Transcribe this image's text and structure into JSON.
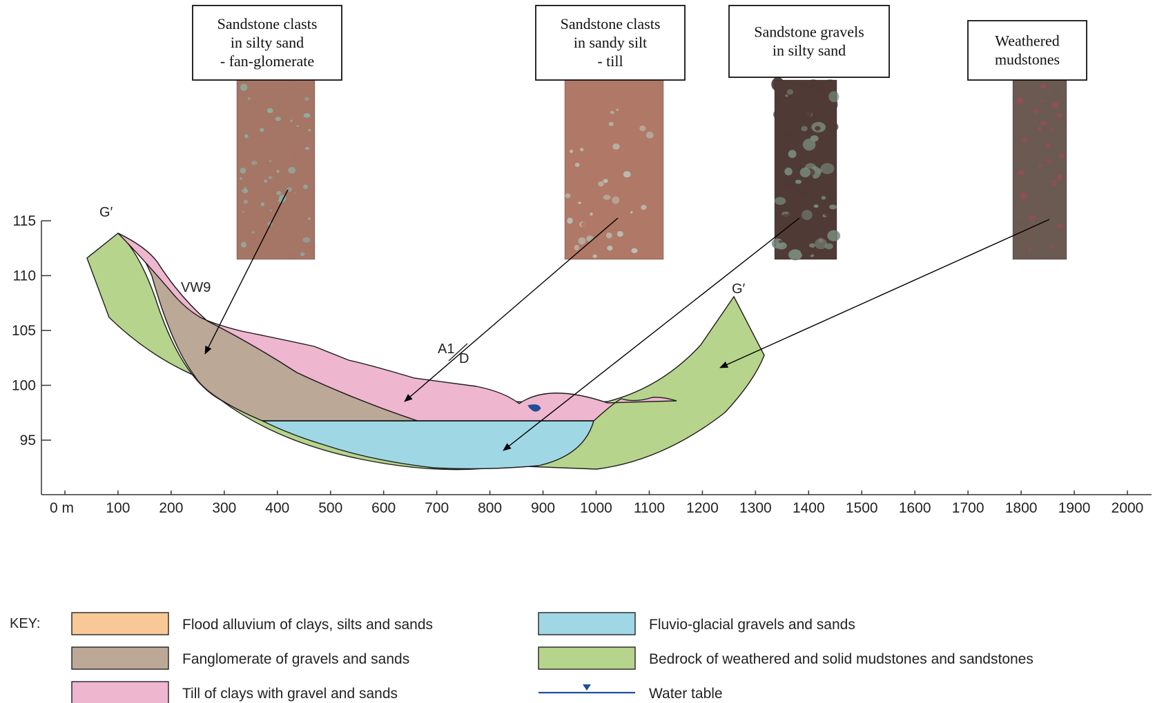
{
  "colors": {
    "flood": "#f8c896",
    "fanglomerate": "#bca896",
    "till": "#eeb6cf",
    "fluvio": "#9fd8e4",
    "bedrock": "#b6d48c",
    "water": "#1f4e9a",
    "outline": "#1b1b1b"
  },
  "yaxis": {
    "ticks": [
      "115",
      "110",
      "105",
      "100",
      "95"
    ]
  },
  "xaxis": {
    "ticks": [
      "0 m",
      "100",
      "200",
      "300",
      "400",
      "500",
      "600",
      "700",
      "800",
      "900",
      "1000",
      "1100",
      "1200",
      "1300",
      "1400",
      "1500",
      "1600",
      "1700",
      "1800",
      "1900",
      "2000"
    ]
  },
  "section_labels": {
    "left_end": "G′",
    "right_end": "G′",
    "borehole": "VW9",
    "a1": "A1",
    "d": "D"
  },
  "core_labels": [
    {
      "lines": [
        "Sandstone clasts",
        "in silty sand",
        "- fan-glomerate"
      ]
    },
    {
      "lines": [
        "Sandstone clasts",
        "in sandy silt",
        "- till"
      ]
    },
    {
      "lines": [
        "Sandstone gravels",
        "in silty sand"
      ]
    },
    {
      "lines": [
        "Weathered",
        "mudstones"
      ]
    }
  ],
  "core_photos": [
    {
      "base": "#a57566",
      "spot": "#8fb0a4"
    },
    {
      "base": "#b07866",
      "spot": "#b9c4ba"
    },
    {
      "base": "#4f3a36",
      "spot": "#7a8c7e"
    },
    {
      "base": "#6a5a52",
      "spot": "#9a4a5c"
    }
  ],
  "key": {
    "title": "KEY:",
    "items": [
      {
        "color": "#f8c896",
        "label": "Flood alluvium of clays, silts and sands"
      },
      {
        "color": "#bca896",
        "label": "Fanglomerate of gravels and sands"
      },
      {
        "color": "#eeb6cf",
        "label": "Till of clays with gravel and sands"
      },
      {
        "color": "#9fd8e4",
        "label": "Fluvio-glacial gravels and sands"
      },
      {
        "color": "#b6d48c",
        "label": "Bedrock of weathered and solid mudstones and sandstones"
      },
      {
        "color": "water-table",
        "label": "Water table"
      }
    ]
  }
}
